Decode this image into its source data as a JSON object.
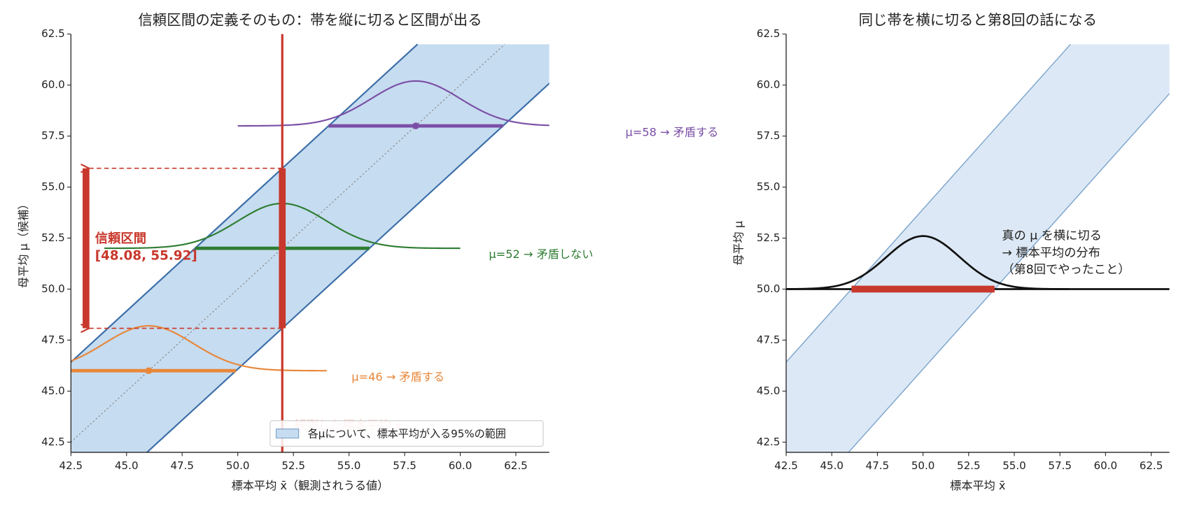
{
  "chart_data": [
    {
      "type": "band",
      "title": "信頼区間の定義そのもの：帯を縦に切ると区間が出る",
      "xlabel": "標本平均 x̄（観測されうる値）",
      "ylabel": "母平均 μ（候補）",
      "xlim": [
        42.5,
        64
      ],
      "ylim": [
        42,
        62.5
      ],
      "xticks": [
        42.5,
        {
          "value": 45,
          "label": "45.0"
        },
        47.5,
        {
          "value": 50,
          "label": "50.0"
        },
        52.5,
        {
          "value": 55,
          "label": "55.0"
        },
        57.5,
        {
          "value": 60,
          "label": "60.0"
        },
        62.5
      ],
      "yticks": [
        42.5,
        {
          "value": 45,
          "label": "45.0"
        },
        47.5,
        {
          "value": 50,
          "label": "50.0"
        },
        52.5,
        {
          "value": 55,
          "label": "55.0"
        },
        57.5,
        {
          "value": 60,
          "label": "60.0"
        },
        62.5
      ],
      "band": {
        "name": "各μについて、標本平均が入る95%の範囲",
        "color": "#c6dcf0",
        "edge_color": "#3a6ea8",
        "y": [
          42,
          62
        ],
        "x_lower": [
          38.08,
          58.08
        ],
        "x_upper": [
          45.92,
          65.92
        ]
      },
      "diagonal": {
        "x": [
          42,
          62
        ],
        "y": [
          42,
          62
        ],
        "color": "#8a8a8a"
      },
      "observed": {
        "label": "観測した標本平均 x̄",
        "x": 52,
        "color": "#c8382c"
      },
      "interval": {
        "label": "信頼区間",
        "range_label": "[48.08, 55.92]",
        "values": [
          48.08,
          55.92
        ],
        "color": "#c8382c"
      },
      "candidates": [
        {
          "label": "μ=46 → 矛盾する",
          "mu": 46,
          "peak": 48.2,
          "interval": [
            42.08,
            49.92
          ],
          "curve_x": [
            38,
            54
          ],
          "color": "#e8873a"
        },
        {
          "label": "μ=52 → 矛盾しない",
          "mu": 52,
          "peak": 54.2,
          "interval": [
            48.08,
            55.92
          ],
          "curve_x": [
            44,
            60
          ],
          "color": "#2e7d32"
        },
        {
          "label": "μ=58 → 矛盾する",
          "mu": 58,
          "peak": 60.2,
          "interval": [
            54.08,
            61.92
          ],
          "curve_x": [
            50,
            66
          ],
          "color": "#7b4fa6"
        }
      ]
    },
    {
      "type": "slice",
      "title": "同じ帯を横に切ると第8回の話になる",
      "xlabel": "標本平均 x̄",
      "ylabel": "母平均 μ",
      "xlim": [
        42.5,
        63.5
      ],
      "ylim": [
        42,
        62.5
      ],
      "xticks": [
        42.5,
        {
          "value": 45,
          "label": "45.0"
        },
        47.5,
        {
          "value": 50,
          "label": "50.0"
        },
        52.5,
        {
          "value": 55,
          "label": "55.0"
        },
        57.5,
        {
          "value": 60,
          "label": "60.0"
        },
        62.5
      ],
      "yticks": [
        42.5,
        {
          "value": 45,
          "label": "45.0"
        },
        47.5,
        {
          "value": 50,
          "label": "50.0"
        },
        52.5,
        {
          "value": 55,
          "label": "55.0"
        },
        57.5,
        {
          "value": 60,
          "label": "60.0"
        },
        62.5
      ],
      "band": {
        "color": "#dce8f5",
        "edge_color": "#7aa3cc",
        "y": [
          42,
          62
        ],
        "x_lower": [
          38.08,
          58.08
        ],
        "x_upper": [
          45.92,
          65.92
        ]
      },
      "mu": 50,
      "peak": 52.6,
      "curve_x": [
        42.5,
        58
      ],
      "interval": [
        46.08,
        53.92
      ],
      "line_color": "#111111",
      "interval_color": "#c8382c",
      "annotation": [
        "真の μ を横に切る",
        "→ 標本平均の分布",
        "（第8回でやったこと）"
      ]
    }
  ]
}
